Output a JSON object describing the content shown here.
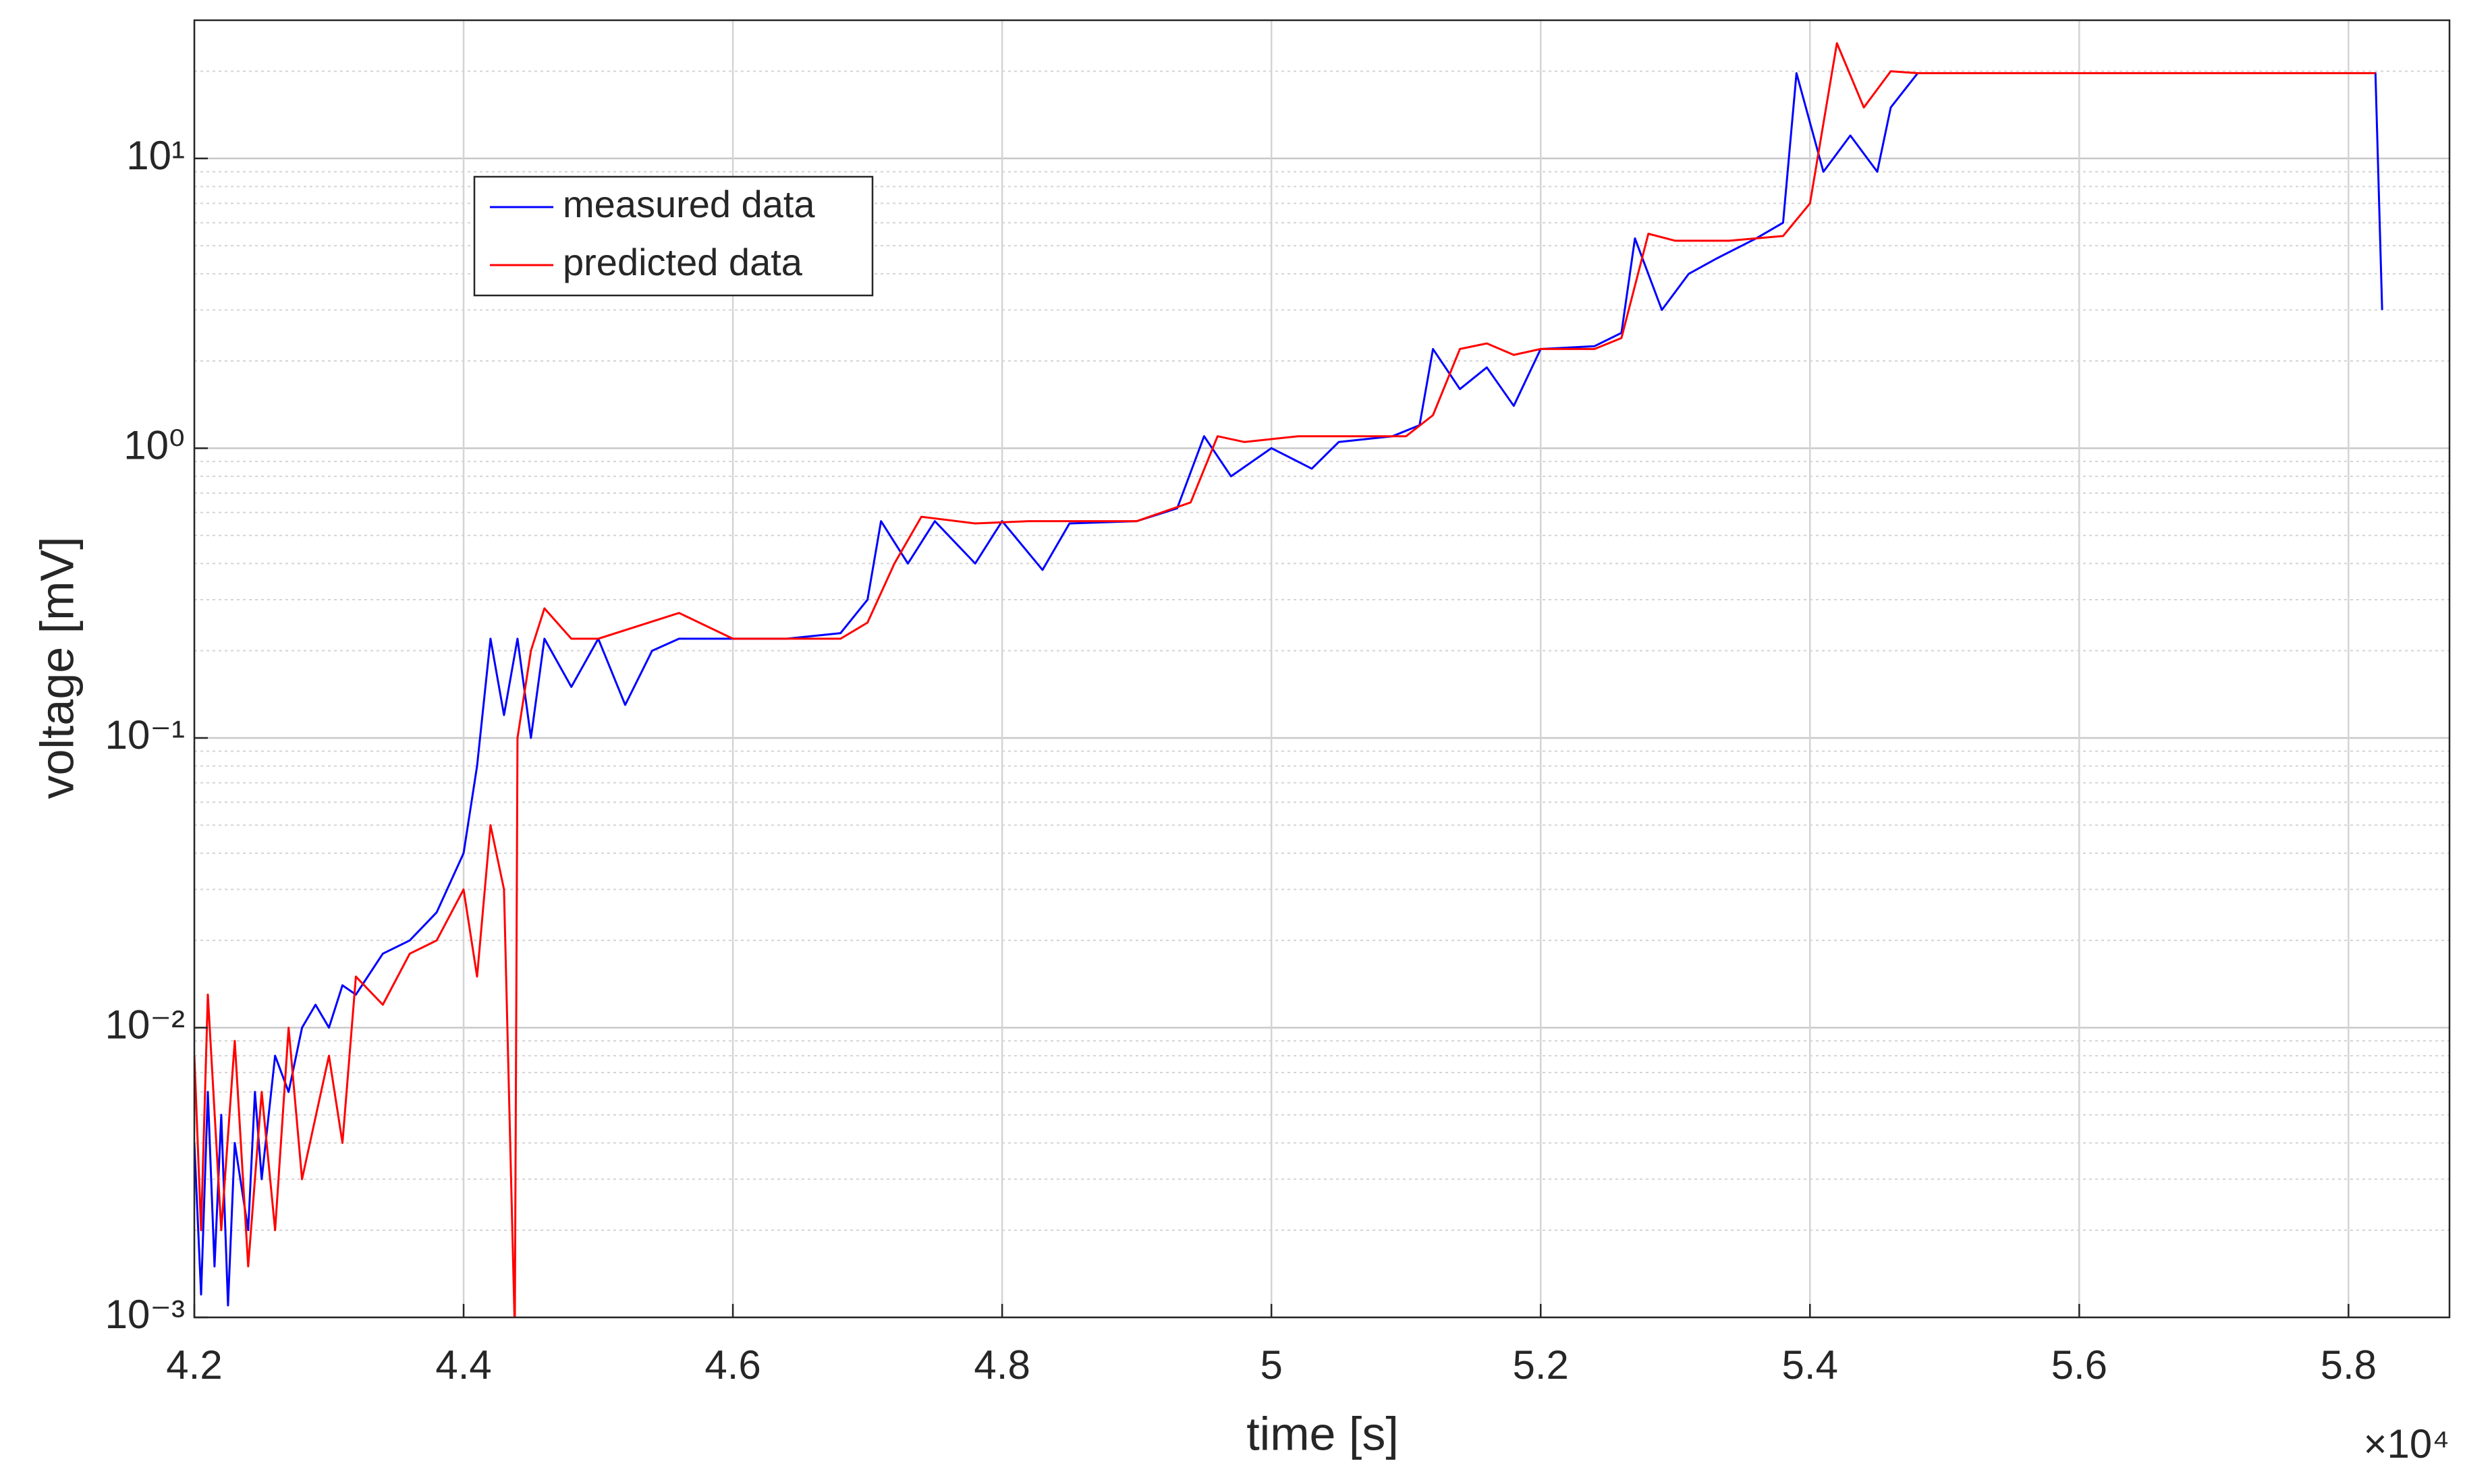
{
  "chart_data": {
    "type": "line",
    "xlabel": "time [s]",
    "ylabel": "voltage [mV]",
    "x_exponent_label": "×10⁴",
    "xlim": [
      42000,
      58750
    ],
    "xticks": [
      {
        "value": 42000,
        "label": "4.2"
      },
      {
        "value": 44000,
        "label": "4.4"
      },
      {
        "value": 46000,
        "label": "4.6"
      },
      {
        "value": 48000,
        "label": "4.8"
      },
      {
        "value": 50000,
        "label": "5"
      },
      {
        "value": 52000,
        "label": "5.2"
      },
      {
        "value": 54000,
        "label": "5.4"
      },
      {
        "value": 56000,
        "label": "5.6"
      },
      {
        "value": 58000,
        "label": "5.8"
      }
    ],
    "ylim": [
      0.001,
      30
    ],
    "yscale": "log",
    "yticks": [
      {
        "value": 0.001,
        "label": "10⁻³"
      },
      {
        "value": 0.01,
        "label": "10⁻²"
      },
      {
        "value": 0.1,
        "label": "10⁻¹"
      },
      {
        "value": 1,
        "label": "10⁰"
      },
      {
        "value": 10,
        "label": "10¹"
      }
    ],
    "yminor_ticks": [
      0.002,
      0.003,
      0.004,
      0.005,
      0.006,
      0.007,
      0.008,
      0.009,
      0.02,
      0.03,
      0.04,
      0.05,
      0.06,
      0.07,
      0.08,
      0.09,
      0.2,
      0.3,
      0.4,
      0.5,
      0.6,
      0.7,
      0.8,
      0.9,
      2,
      3,
      4,
      5,
      6,
      7,
      8,
      9,
      20,
      30
    ],
    "grid": true,
    "legend": "upper left",
    "series": [
      {
        "name": "measured data",
        "color": "#0000ff",
        "x": [
          42000,
          42050,
          42100,
          42150,
          42200,
          42250,
          42300,
          42400,
          42450,
          42500,
          42600,
          42700,
          42800,
          42900,
          43000,
          43100,
          43200,
          43400,
          43600,
          43800,
          44000,
          44100,
          44200,
          44300,
          44400,
          44500,
          44600,
          44800,
          45000,
          45200,
          45400,
          45600,
          46000,
          46400,
          46800,
          47000,
          47100,
          47300,
          47500,
          47800,
          48000,
          48300,
          48500,
          49000,
          49300,
          49500,
          49700,
          50000,
          50300,
          50500,
          50900,
          51100,
          51200,
          51400,
          51600,
          51800,
          52000,
          52400,
          52600,
          52700,
          52900,
          53100,
          53300,
          53600,
          53800,
          53900,
          54100,
          54300,
          54500,
          54600,
          54800,
          56000,
          58200,
          58250
        ],
        "values": [
          0.004,
          0.0012,
          0.006,
          0.0015,
          0.005,
          0.0011,
          0.004,
          0.002,
          0.006,
          0.003,
          0.008,
          0.006,
          0.01,
          0.012,
          0.01,
          0.014,
          0.013,
          0.018,
          0.02,
          0.025,
          0.04,
          0.08,
          0.22,
          0.12,
          0.22,
          0.1,
          0.22,
          0.15,
          0.22,
          0.13,
          0.2,
          0.22,
          0.22,
          0.22,
          0.23,
          0.3,
          0.56,
          0.4,
          0.56,
          0.4,
          0.56,
          0.38,
          0.55,
          0.56,
          0.62,
          1.1,
          0.8,
          1.0,
          0.85,
          1.05,
          1.1,
          1.2,
          2.2,
          1.6,
          1.9,
          1.4,
          2.2,
          2.25,
          2.5,
          5.3,
          3.0,
          4.0,
          4.5,
          5.3,
          6,
          19.7,
          9,
          12,
          9,
          15,
          19.7,
          19.7,
          19.7,
          3.0
        ]
      },
      {
        "name": "predicted data",
        "color": "#ff0000",
        "x": [
          42000,
          42050,
          42100,
          42200,
          42300,
          42400,
          42500,
          42600,
          42700,
          42800,
          43000,
          43100,
          43200,
          43400,
          43600,
          43800,
          44000,
          44100,
          44200,
          44300,
          44380,
          44400,
          44500,
          44600,
          44800,
          45000,
          45600,
          46000,
          46400,
          46800,
          47000,
          47200,
          47400,
          47800,
          48200,
          48600,
          49000,
          49400,
          49600,
          49800,
          50200,
          50600,
          51000,
          51200,
          51400,
          51600,
          51800,
          52000,
          52400,
          52600,
          52800,
          53000,
          53400,
          53800,
          54000,
          54200,
          54400,
          54600,
          54800,
          56000,
          58200
        ],
        "values": [
          0.008,
          0.002,
          0.013,
          0.002,
          0.009,
          0.0015,
          0.006,
          0.002,
          0.01,
          0.003,
          0.008,
          0.004,
          0.015,
          0.012,
          0.018,
          0.02,
          0.03,
          0.015,
          0.05,
          0.03,
          0.0009,
          0.1,
          0.2,
          0.28,
          0.22,
          0.22,
          0.27,
          0.22,
          0.22,
          0.22,
          0.25,
          0.4,
          0.58,
          0.55,
          0.56,
          0.56,
          0.56,
          0.65,
          1.1,
          1.05,
          1.1,
          1.1,
          1.1,
          1.3,
          2.2,
          2.3,
          2.1,
          2.2,
          2.2,
          2.4,
          5.5,
          5.2,
          5.2,
          5.4,
          7,
          25,
          15,
          20,
          19.7,
          19.7,
          19.7
        ]
      }
    ]
  }
}
